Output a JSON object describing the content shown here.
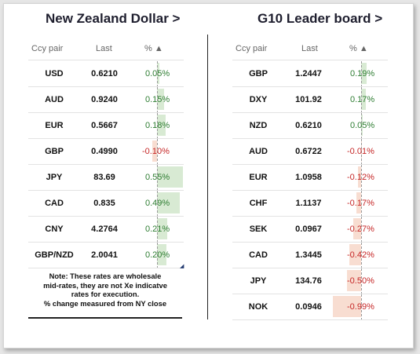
{
  "left": {
    "title": "New Zealand Dollar >",
    "headers": {
      "ccy": "Ccy pair",
      "last": "Last",
      "pct": "% ▲"
    },
    "rows": [
      {
        "ccy": "USD",
        "last": "0.6210",
        "pct": "0.05%",
        "value": 0.05
      },
      {
        "ccy": "AUD",
        "last": "0.9240",
        "pct": "0.15%",
        "value": 0.15
      },
      {
        "ccy": "EUR",
        "last": "0.5667",
        "pct": "0.18%",
        "value": 0.18
      },
      {
        "ccy": "GBP",
        "last": "0.4990",
        "pct": "-0.10%",
        "value": -0.1
      },
      {
        "ccy": "JPY",
        "last": "83.69",
        "pct": "0.55%",
        "value": 0.55
      },
      {
        "ccy": "CAD",
        "last": "0.835",
        "pct": "0.49%",
        "value": 0.49
      },
      {
        "ccy": "CNY",
        "last": "4.2764",
        "pct": "0.21%",
        "value": 0.21
      },
      {
        "ccy": "GBP/NZD",
        "last": "2.0041",
        "pct": "0.20%",
        "value": 0.2
      }
    ],
    "note": {
      "line1": "Note: These rates are wholesale",
      "line2": "mid-rates, they are not Xe indicatve",
      "line3": "rates for execution.",
      "line4": "% change measured from NY close"
    }
  },
  "right": {
    "title": "G10 Leader board >",
    "headers": {
      "ccy": "Ccy pair",
      "last": "Last",
      "pct": "% ▲"
    },
    "rows": [
      {
        "ccy": "GBP",
        "last": "1.2447",
        "pct": "0.19%",
        "value": 0.19
      },
      {
        "ccy": "DXY",
        "last": "101.92",
        "pct": "0.17%",
        "value": 0.17
      },
      {
        "ccy": "NZD",
        "last": "0.6210",
        "pct": "0.05%",
        "value": 0.05
      },
      {
        "ccy": "AUD",
        "last": "0.6722",
        "pct": "-0.01%",
        "value": -0.01
      },
      {
        "ccy": "EUR",
        "last": "1.0958",
        "pct": "-0.12%",
        "value": -0.12
      },
      {
        "ccy": "CHF",
        "last": "1.1137",
        "pct": "-0.17%",
        "value": -0.17
      },
      {
        "ccy": "SEK",
        "last": "0.0967",
        "pct": "-0.27%",
        "value": -0.27
      },
      {
        "ccy": "CAD",
        "last": "1.3445",
        "pct": "-0.42%",
        "value": -0.42
      },
      {
        "ccy": "JPY",
        "last": "134.76",
        "pct": "-0.50%",
        "value": -0.5
      },
      {
        "ccy": "NOK",
        "last": "0.0946",
        "pct": "-0.99%",
        "value": -0.99
      }
    ]
  },
  "colors": {
    "positive_bar": "#d8ead3",
    "negative_bar": "#f8ddd1",
    "positive_text": "#2e7d32",
    "negative_text": "#c62828"
  }
}
